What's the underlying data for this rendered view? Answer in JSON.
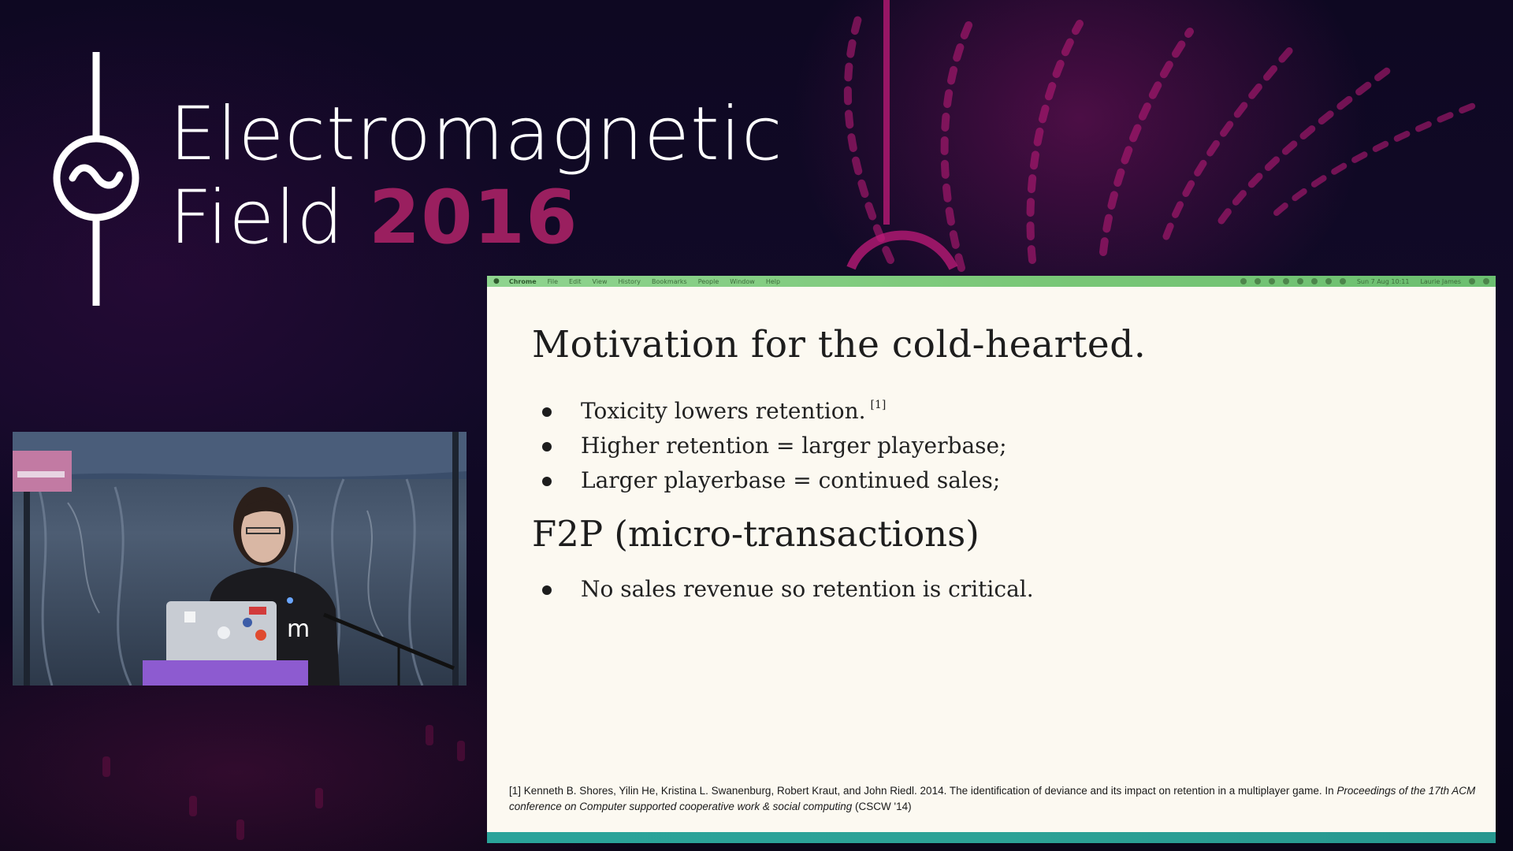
{
  "event": {
    "title_line1": "Electromagnetic",
    "title_line2": "Field",
    "year": "2016",
    "logo_icon": "oscillator-symbol-icon",
    "accent_color": "#9a1f5f"
  },
  "camera": {
    "description_icon": "speaker-camera-feed",
    "shirt_text": "m"
  },
  "menubar": {
    "apple_icon": "",
    "app_name": "Chrome",
    "items": [
      "File",
      "Edit",
      "View",
      "History",
      "Bookmarks",
      "People",
      "Window",
      "Help"
    ],
    "status": {
      "date_time": "Sun 7 Aug 10:11",
      "user": "Laurie James"
    }
  },
  "slide": {
    "heading": "Motivation for the cold-hearted.",
    "bullets": [
      {
        "text": "Toxicity lowers retention.",
        "ref": "[1]"
      },
      {
        "text": "Higher retention = larger playerbase;"
      },
      {
        "text": "Larger playerbase = continued sales;"
      }
    ],
    "subheading": "F2P (micro-transactions)",
    "bullets2": [
      {
        "text": "No sales revenue so retention is critical."
      }
    ],
    "footnote": {
      "prefix": "[1] Kenneth B. Shores, Yilin He, Kristina L. Swanenburg, Robert Kraut, and John Riedl. 2014. The identification of deviance and its impact on retention in a multiplayer game. In ",
      "italic": "Proceedings of the 17th ACM conference on Computer supported cooperative work & social computing",
      "suffix": " (CSCW '14)"
    }
  }
}
